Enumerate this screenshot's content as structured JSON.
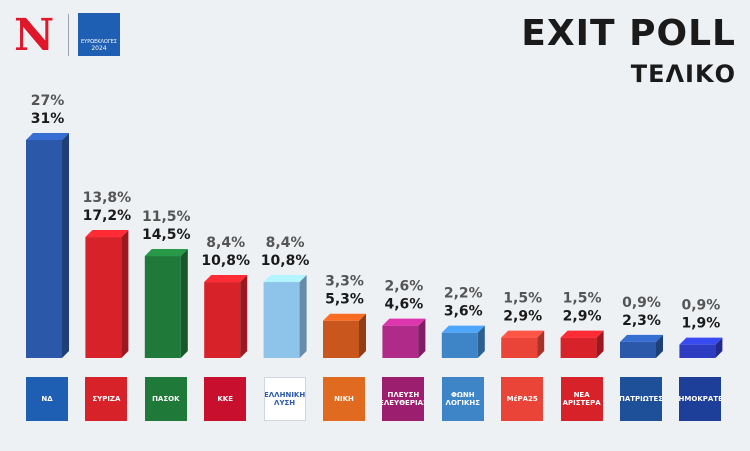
{
  "header": {
    "brand_letter": "N",
    "brand_logo_text": "ΕΥΡΩΕΚΛΟΓΕΣ",
    "brand_logo_year": "2024",
    "title": "EXIT POLL",
    "subtitle": "ΤΕΛΙΚΟ"
  },
  "colors": {
    "background": "#eef1f4",
    "text": "#1a1a1a",
    "exit_poll_label": "#555555"
  },
  "chart_data": {
    "type": "bar",
    "categories": [
      "ΝΔ",
      "ΣΥΡΙΖΑ",
      "ΠΑΣΟΚ",
      "ΚΚΕ",
      "ΕΛΛΗΝΙΚΗ ΛΥΣΗ",
      "ΝΙΚΗ",
      "ΠΛΕΥΣΗ ΕΛΕΥΘΕΡΙΑΣ",
      "ΦΩΝΗ ΛΟΓΙΚΗΣ",
      "ΜέΡΑ25",
      "ΝΕΑ ΑΡΙΣΤΕΡΑ",
      "ΠΑΤΡΙΩΤΕΣ",
      "ΔΗΜΟΚΡΑΤΕΣ"
    ],
    "lower_labels": [
      "27%",
      "13,8%",
      "11,5%",
      "8,4%",
      "8,4%",
      "3,3%",
      "2,6%",
      "2,2%",
      "1,5%",
      "1,5%",
      "0,9%",
      "0,9%"
    ],
    "upper_labels": [
      "31%",
      "17,2%",
      "14,5%",
      "10,8%",
      "10,8%",
      "5,3%",
      "4,6%",
      "3,6%",
      "2,9%",
      "2,9%",
      "2,3%",
      "1,9%"
    ],
    "series": [
      {
        "values": [
          27,
          13.8,
          11.5,
          8.4,
          8.4,
          3.3,
          2.6,
          2.2,
          1.5,
          1.5,
          0.9,
          0.9
        ]
      },
      {
        "values": [
          31,
          17.2,
          14.5,
          10.8,
          10.8,
          5.3,
          4.6,
          3.6,
          2.9,
          2.9,
          2.3,
          1.9
        ]
      }
    ],
    "colors": [
      "#2b58a8",
      "#d8222a",
      "#1f7a3a",
      "#d8222a",
      "#8ec3ea",
      "#c9561d",
      "#b02a8a",
      "#3e85c8",
      "#e94437",
      "#d8222a",
      "#2b58a8",
      "#2d3cc0"
    ],
    "ylim": [
      0,
      31
    ],
    "grid": false,
    "legend": "none"
  },
  "party_logos": [
    {
      "text": "ΝΔ",
      "color": "#1e5fb3"
    },
    {
      "text": "ΣΥΡΙΖΑ",
      "color": "#d8222a"
    },
    {
      "text": "ΠΑΣΟΚ",
      "color": "#1f7a3a"
    },
    {
      "text": "ΚΚΕ",
      "color": "#c8102e"
    },
    {
      "text": "ΕΛΛΗΝΙΚΗ ΛΥΣΗ",
      "color": "#ffffff"
    },
    {
      "text": "ΝΙΚΗ",
      "color": "#e06a1f"
    },
    {
      "text": "ΠΛΕΥΣΗ ΕΛΕΥΘΕΡΙΑΣ",
      "color": "#9b1f6e"
    },
    {
      "text": "ΦΩΝΗ ΛΟΓΙΚΗΣ",
      "color": "#3e85c8"
    },
    {
      "text": "ΜέΡΑ25",
      "color": "#e94437"
    },
    {
      "text": "ΝΕΑ ΑΡΙΣΤΕΡΑ",
      "color": "#d8222a"
    },
    {
      "text": "ΠΑΤΡΙΩΤΕΣ",
      "color": "#1e4f99"
    },
    {
      "text": "ΔΗΜΟΚΡΑΤΕΣ",
      "color": "#1e3f99"
    }
  ]
}
